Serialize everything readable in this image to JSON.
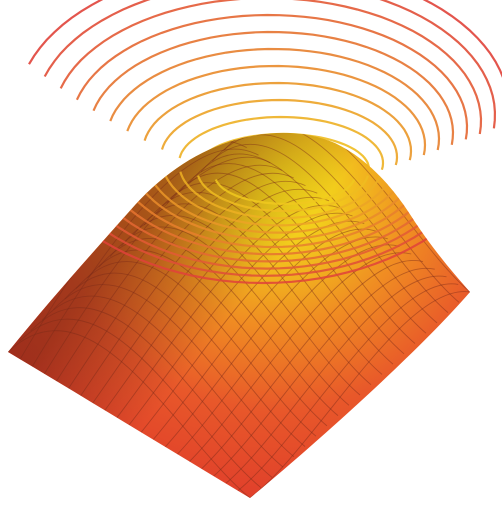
{
  "figure": {
    "kind": "3D surface with contour rings",
    "colors": {
      "background": "#ffffff",
      "surface_low": "#e23d2a",
      "surface_mid": "#f07a22",
      "surface_high": "#f2d21a",
      "mesh": "#7a2a18",
      "contour_inner": "#f0c81e",
      "contour_outer": "#e0423a"
    },
    "contour_count": 12
  }
}
